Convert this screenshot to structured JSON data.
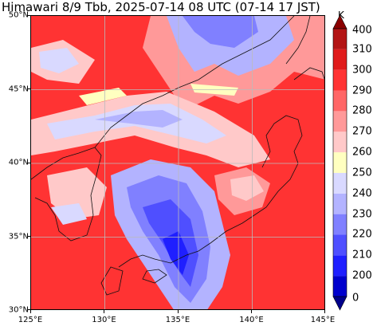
{
  "title": "Himawari 8/9 Tbb, 2025-07-14 08 UTC (07-14 17 JST)",
  "map": {
    "lon_range": [
      125,
      145
    ],
    "lat_range": [
      30,
      50
    ],
    "lat_ticks": [
      "30°N",
      "35°N",
      "40°N",
      "45°N",
      "50°N"
    ],
    "lon_ticks": [
      "125°E",
      "130°E",
      "135°E",
      "140°E",
      "145°E"
    ],
    "gridlines": true
  },
  "colorbar": {
    "unit": "K",
    "labels": [
      "0",
      "200",
      "210",
      "220",
      "230",
      "240",
      "250",
      "260",
      "270",
      "280",
      "290",
      "300",
      "310",
      "400"
    ],
    "colors": [
      "#00008b",
      "#0000cd",
      "#1f1fff",
      "#4f4fff",
      "#8080ff",
      "#b3b3ff",
      "#d9d9ff",
      "#ffffc0",
      "#ffc9c9",
      "#ff9999",
      "#ff6666",
      "#ff3333",
      "#e01b1b",
      "#b31515",
      "#8b0000"
    ]
  }
}
